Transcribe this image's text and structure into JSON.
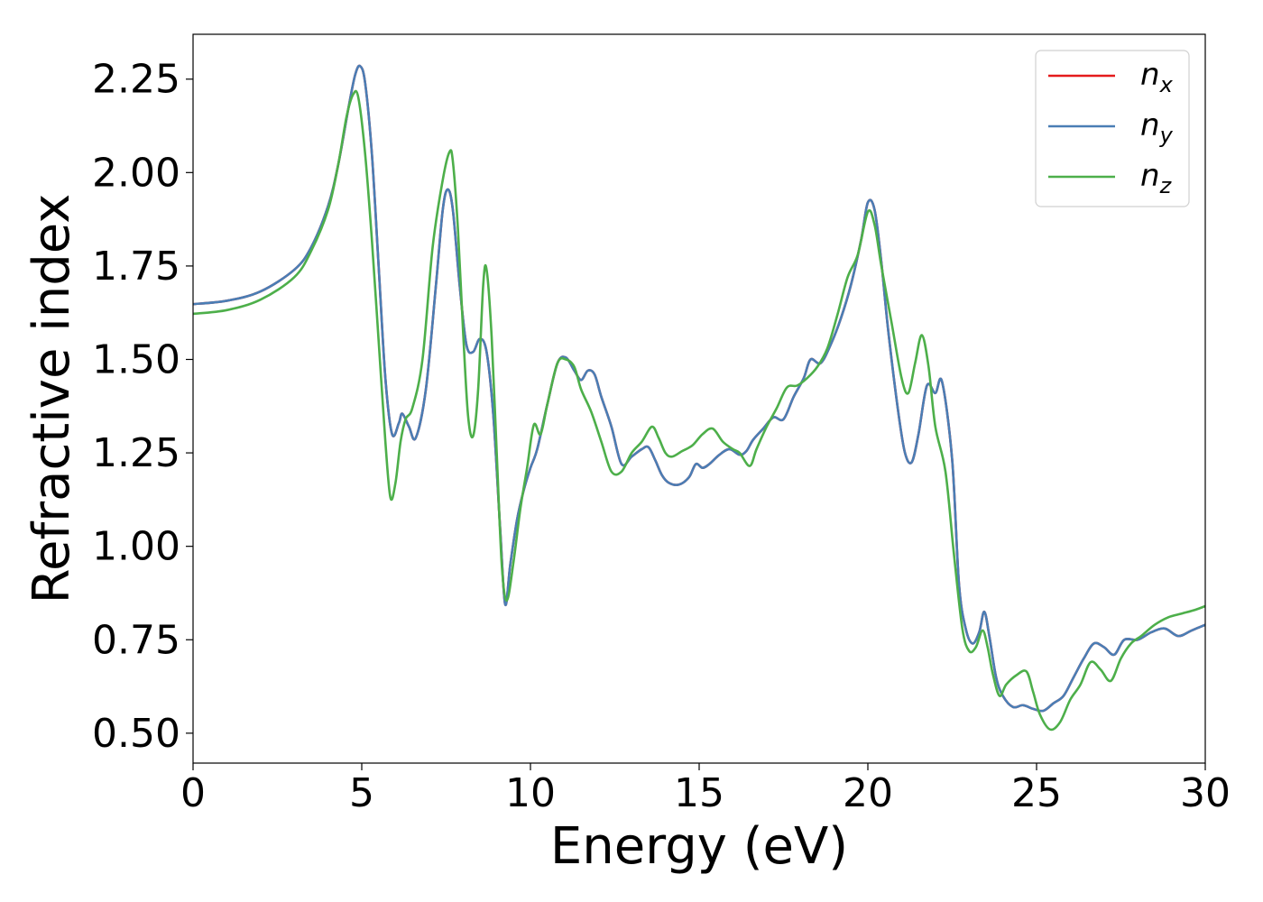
{
  "chart_data": {
    "type": "line",
    "xlabel": "Energy (eV)",
    "ylabel": "Refractive index",
    "xlim": [
      0,
      30
    ],
    "ylim": [
      0.42,
      2.37
    ],
    "xticks": [
      0,
      5,
      10,
      15,
      20,
      25,
      30
    ],
    "xtick_labels": [
      "0",
      "5",
      "10",
      "15",
      "20",
      "25",
      "30"
    ],
    "yticks": [
      0.5,
      0.75,
      1.0,
      1.25,
      1.5,
      1.75,
      2.0,
      2.25
    ],
    "ytick_labels": [
      "0.50",
      "0.75",
      "1.00",
      "1.25",
      "1.50",
      "1.75",
      "2.00",
      "2.25"
    ],
    "grid": false,
    "legend_position": "top-right",
    "series": [
      {
        "name": "n",
        "subscript": "x",
        "color": "#e41a1c",
        "x": [
          0,
          1,
          2,
          3,
          3.5,
          4,
          4.3,
          4.6,
          4.8,
          4.95,
          5.1,
          5.3,
          5.5,
          5.7,
          5.9,
          6.1,
          6.2,
          6.4,
          6.6,
          6.9,
          7.2,
          7.4,
          7.55,
          7.7,
          7.9,
          8.1,
          8.3,
          8.5,
          8.7,
          8.9,
          9.1,
          9.25,
          9.4,
          9.6,
          9.8,
          10.0,
          10.2,
          10.5,
          10.8,
          11.05,
          11.3,
          11.5,
          11.7,
          11.9,
          12.1,
          12.4,
          12.7,
          13.0,
          13.3,
          13.5,
          13.7,
          13.9,
          14.1,
          14.4,
          14.7,
          14.9,
          15.1,
          15.3,
          15.6,
          15.9,
          16.2,
          16.4,
          16.6,
          16.9,
          17.2,
          17.5,
          17.8,
          18.1,
          18.3,
          18.6,
          18.9,
          19.2,
          19.5,
          19.8,
          20.0,
          20.2,
          20.4,
          20.6,
          20.9,
          21.1,
          21.3,
          21.5,
          21.75,
          22.0,
          22.2,
          22.5,
          22.7,
          22.9,
          23.1,
          23.3,
          23.45,
          23.6,
          23.8,
          24.0,
          24.3,
          24.6,
          24.9,
          25.2,
          25.5,
          25.8,
          26.1,
          26.4,
          26.7,
          27.0,
          27.3,
          27.6,
          28.0,
          28.4,
          28.8,
          29.2,
          29.6,
          30.0
        ],
        "values": [
          1.648,
          1.657,
          1.682,
          1.74,
          1.8,
          1.91,
          2.02,
          2.17,
          2.26,
          2.285,
          2.24,
          2.05,
          1.75,
          1.45,
          1.3,
          1.33,
          1.355,
          1.32,
          1.29,
          1.42,
          1.7,
          1.9,
          1.955,
          1.9,
          1.7,
          1.54,
          1.52,
          1.555,
          1.52,
          1.35,
          1.05,
          0.845,
          0.95,
          1.07,
          1.15,
          1.21,
          1.26,
          1.38,
          1.49,
          1.505,
          1.47,
          1.445,
          1.47,
          1.46,
          1.4,
          1.32,
          1.22,
          1.24,
          1.26,
          1.265,
          1.23,
          1.19,
          1.17,
          1.165,
          1.185,
          1.22,
          1.21,
          1.22,
          1.245,
          1.26,
          1.245,
          1.255,
          1.285,
          1.315,
          1.345,
          1.34,
          1.4,
          1.45,
          1.5,
          1.49,
          1.54,
          1.61,
          1.7,
          1.82,
          1.92,
          1.9,
          1.76,
          1.58,
          1.36,
          1.25,
          1.225,
          1.3,
          1.43,
          1.41,
          1.44,
          1.23,
          0.9,
          0.78,
          0.74,
          0.77,
          0.825,
          0.76,
          0.65,
          0.6,
          0.57,
          0.575,
          0.565,
          0.56,
          0.58,
          0.6,
          0.65,
          0.7,
          0.74,
          0.73,
          0.71,
          0.75,
          0.75,
          0.77,
          0.78,
          0.76,
          0.775,
          0.79
        ]
      },
      {
        "name": "n",
        "subscript": "y",
        "color": "#4a7eb5",
        "x": [
          0,
          1,
          2,
          3,
          3.5,
          4,
          4.3,
          4.6,
          4.8,
          4.95,
          5.1,
          5.3,
          5.5,
          5.7,
          5.9,
          6.1,
          6.2,
          6.4,
          6.6,
          6.9,
          7.2,
          7.4,
          7.55,
          7.7,
          7.9,
          8.1,
          8.3,
          8.5,
          8.7,
          8.9,
          9.1,
          9.25,
          9.4,
          9.6,
          9.8,
          10.0,
          10.2,
          10.5,
          10.8,
          11.05,
          11.3,
          11.5,
          11.7,
          11.9,
          12.1,
          12.4,
          12.7,
          13.0,
          13.3,
          13.5,
          13.7,
          13.9,
          14.1,
          14.4,
          14.7,
          14.9,
          15.1,
          15.3,
          15.6,
          15.9,
          16.2,
          16.4,
          16.6,
          16.9,
          17.2,
          17.5,
          17.8,
          18.1,
          18.3,
          18.6,
          18.9,
          19.2,
          19.5,
          19.8,
          20.0,
          20.2,
          20.4,
          20.6,
          20.9,
          21.1,
          21.3,
          21.5,
          21.75,
          22.0,
          22.2,
          22.5,
          22.7,
          22.9,
          23.1,
          23.3,
          23.45,
          23.6,
          23.8,
          24.0,
          24.3,
          24.6,
          24.9,
          25.2,
          25.5,
          25.8,
          26.1,
          26.4,
          26.7,
          27.0,
          27.3,
          27.6,
          28.0,
          28.4,
          28.8,
          29.2,
          29.6,
          30.0
        ],
        "values": [
          1.648,
          1.657,
          1.682,
          1.74,
          1.8,
          1.91,
          2.02,
          2.17,
          2.26,
          2.285,
          2.24,
          2.05,
          1.75,
          1.45,
          1.3,
          1.33,
          1.355,
          1.32,
          1.29,
          1.42,
          1.7,
          1.9,
          1.955,
          1.9,
          1.7,
          1.54,
          1.52,
          1.555,
          1.52,
          1.35,
          1.05,
          0.845,
          0.95,
          1.07,
          1.15,
          1.21,
          1.26,
          1.38,
          1.49,
          1.505,
          1.47,
          1.445,
          1.47,
          1.46,
          1.4,
          1.32,
          1.22,
          1.24,
          1.26,
          1.265,
          1.23,
          1.19,
          1.17,
          1.165,
          1.185,
          1.22,
          1.21,
          1.22,
          1.245,
          1.26,
          1.245,
          1.255,
          1.285,
          1.315,
          1.345,
          1.34,
          1.4,
          1.45,
          1.5,
          1.49,
          1.54,
          1.61,
          1.7,
          1.82,
          1.92,
          1.9,
          1.76,
          1.58,
          1.36,
          1.25,
          1.225,
          1.3,
          1.43,
          1.41,
          1.44,
          1.23,
          0.9,
          0.78,
          0.74,
          0.77,
          0.825,
          0.76,
          0.65,
          0.6,
          0.57,
          0.575,
          0.565,
          0.56,
          0.58,
          0.6,
          0.65,
          0.7,
          0.74,
          0.73,
          0.71,
          0.75,
          0.75,
          0.77,
          0.78,
          0.76,
          0.775,
          0.79
        ]
      },
      {
        "name": "n",
        "subscript": "z",
        "color": "#4daf4a",
        "x": [
          0,
          1,
          2,
          3,
          3.5,
          4,
          4.3,
          4.55,
          4.75,
          4.9,
          5.1,
          5.3,
          5.5,
          5.7,
          5.85,
          6.0,
          6.15,
          6.3,
          6.5,
          6.8,
          7.1,
          7.4,
          7.6,
          7.7,
          7.85,
          8.0,
          8.15,
          8.3,
          8.45,
          8.6,
          8.7,
          8.85,
          9.0,
          9.15,
          9.3,
          9.5,
          9.7,
          9.9,
          10.1,
          10.3,
          10.5,
          10.8,
          11.05,
          11.3,
          11.5,
          11.8,
          12.1,
          12.4,
          12.7,
          13.0,
          13.3,
          13.6,
          13.8,
          14.0,
          14.2,
          14.5,
          14.8,
          15.1,
          15.4,
          15.7,
          16.0,
          16.2,
          16.5,
          16.7,
          17.0,
          17.3,
          17.6,
          17.9,
          18.2,
          18.5,
          18.8,
          19.1,
          19.4,
          19.7,
          20.0,
          20.2,
          20.4,
          20.7,
          21.0,
          21.2,
          21.4,
          21.6,
          21.8,
          22.0,
          22.3,
          22.55,
          22.8,
          23.0,
          23.2,
          23.4,
          23.55,
          23.7,
          23.9,
          24.1,
          24.4,
          24.7,
          24.9,
          25.1,
          25.4,
          25.7,
          26.0,
          26.3,
          26.6,
          26.9,
          27.2,
          27.5,
          27.8,
          28.1,
          28.5,
          28.9,
          29.3,
          29.7,
          30.0
        ],
        "values": [
          1.622,
          1.632,
          1.66,
          1.72,
          1.79,
          1.9,
          2.02,
          2.15,
          2.21,
          2.2,
          2.05,
          1.82,
          1.55,
          1.28,
          1.13,
          1.17,
          1.28,
          1.34,
          1.37,
          1.5,
          1.8,
          1.98,
          2.055,
          2.03,
          1.85,
          1.58,
          1.35,
          1.295,
          1.42,
          1.7,
          1.74,
          1.56,
          1.25,
          0.95,
          0.855,
          0.96,
          1.1,
          1.21,
          1.325,
          1.3,
          1.38,
          1.49,
          1.5,
          1.48,
          1.42,
          1.36,
          1.28,
          1.2,
          1.2,
          1.25,
          1.28,
          1.32,
          1.29,
          1.25,
          1.24,
          1.255,
          1.27,
          1.3,
          1.315,
          1.28,
          1.26,
          1.25,
          1.215,
          1.26,
          1.32,
          1.37,
          1.425,
          1.43,
          1.45,
          1.48,
          1.53,
          1.62,
          1.72,
          1.78,
          1.895,
          1.86,
          1.75,
          1.6,
          1.45,
          1.41,
          1.49,
          1.565,
          1.48,
          1.32,
          1.2,
          0.98,
          0.78,
          0.72,
          0.73,
          0.775,
          0.73,
          0.66,
          0.6,
          0.63,
          0.655,
          0.665,
          0.61,
          0.55,
          0.51,
          0.53,
          0.59,
          0.63,
          0.69,
          0.67,
          0.64,
          0.7,
          0.74,
          0.76,
          0.79,
          0.81,
          0.82,
          0.83,
          0.84
        ]
      }
    ]
  }
}
